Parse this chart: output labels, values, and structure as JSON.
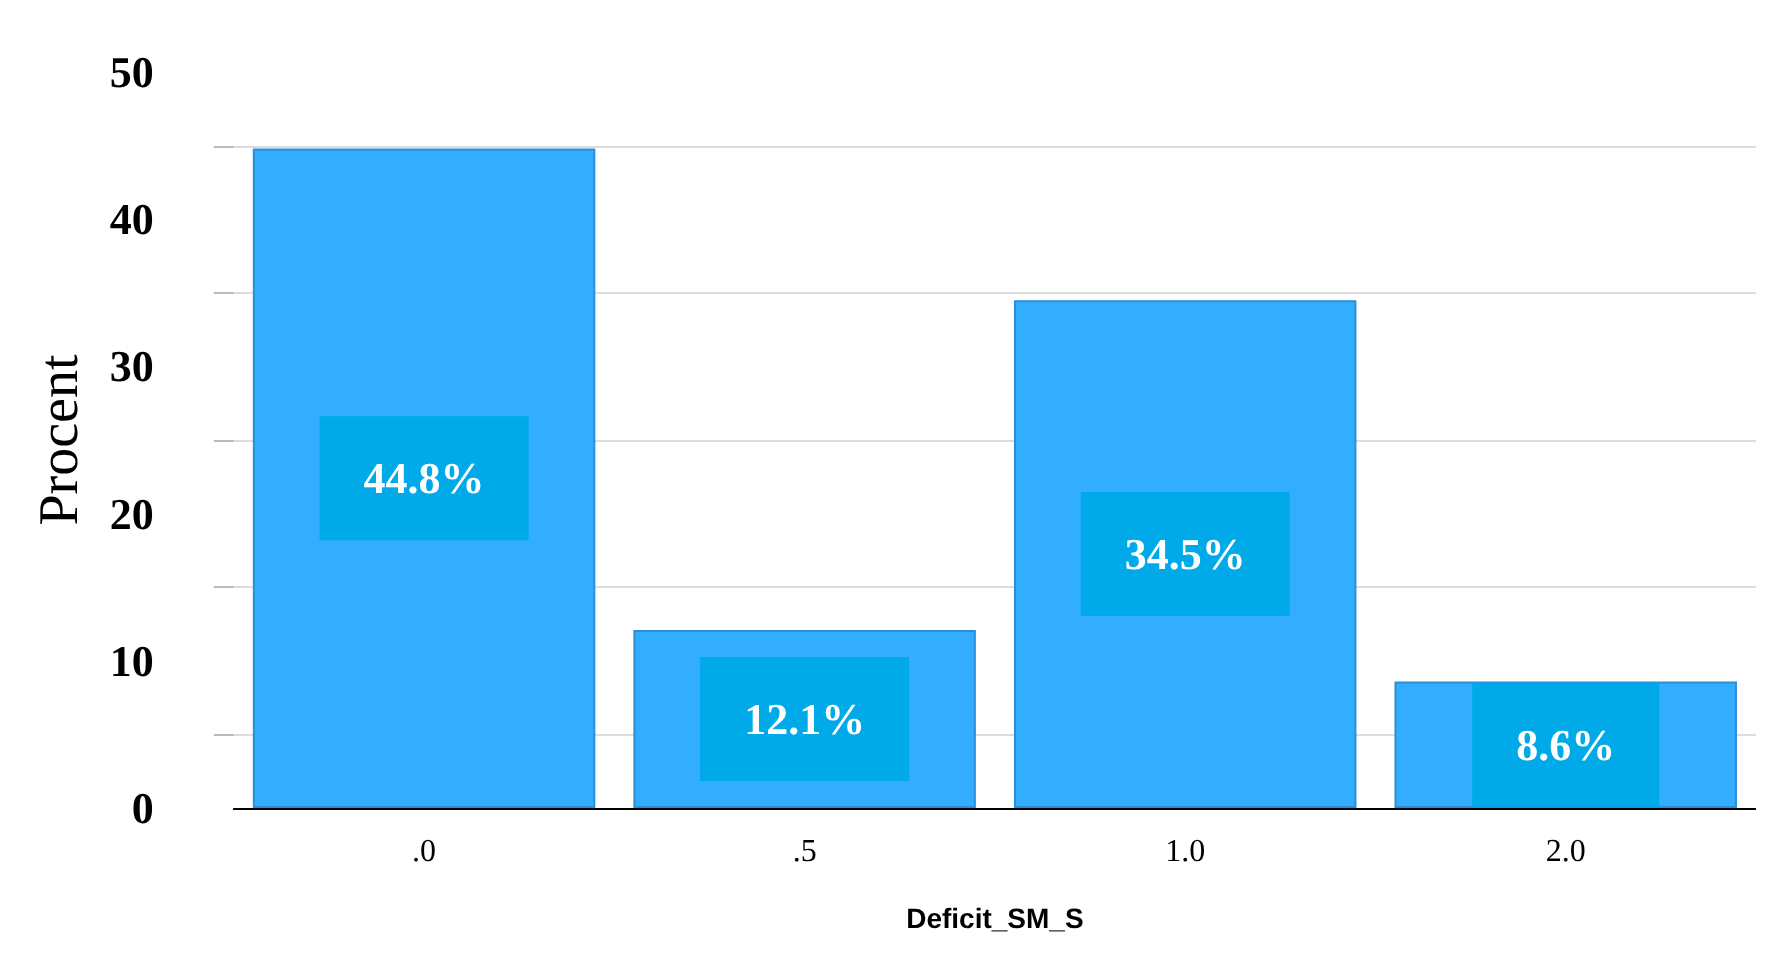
{
  "chart_data": {
    "type": "bar",
    "xlabel": "Deficit_SM_S",
    "ylabel": "Procent",
    "categories": [
      ".0",
      ".5",
      "1.0",
      "2.0"
    ],
    "values": [
      44.8,
      12.1,
      34.5,
      8.6
    ],
    "value_labels": [
      "44.8%",
      "12.1%",
      "34.5%",
      "8.6%"
    ],
    "color": "#33adff",
    "ylim": [
      0,
      50
    ],
    "yticks": [
      0,
      {
        "value": 5,
        "label": null
      },
      10,
      {
        "value": 15,
        "label": null
      },
      20,
      {
        "value": 25,
        "label": null
      },
      30,
      {
        "value": 35,
        "label": null
      },
      40,
      {
        "value": 45,
        "label": null
      },
      50
    ],
    "grid": "y"
  }
}
